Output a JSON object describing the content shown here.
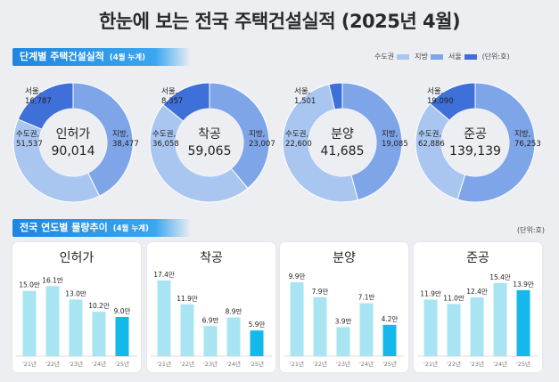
{
  "title": "한눈에 보는 전국 주택건설실적  (2025년 4월)",
  "section1": {
    "label": "단계별 주택건설실적",
    "sub": "(4월 누계)"
  },
  "section2": {
    "label": "전국 연도별 물량추이",
    "sub": "(4월 누계)"
  },
  "legend": [
    {
      "label": "수도권",
      "color": "#a9c6f0"
    },
    {
      "label": "지방",
      "color": "#7ea5e8"
    },
    {
      "label": "서울",
      "color": "#3f6fd8"
    }
  ],
  "unit1": "(단위:호)",
  "unit2": "(단위:호)",
  "colors": {
    "capital": "#a9c6f0",
    "local": "#7ea5e8",
    "seoul": "#3f6fd8",
    "bar": "#a8e4f2",
    "bar_last": "#14b8ea"
  },
  "donuts": [
    {
      "name": "인허가",
      "total": "90,014",
      "seoul_label": "서울,",
      "seoul_value": "16,787",
      "capital_label": "수도권,",
      "capital_value": "51,537",
      "local_label": "지방,",
      "local_value": "38,477",
      "capital": 51537,
      "local": 38477,
      "seoul": 16787
    },
    {
      "name": "착공",
      "total": "59,065",
      "seoul_label": "서울,",
      "seoul_value": "8,357",
      "capital_label": "수도권,",
      "capital_value": "36,058",
      "local_label": "지방,",
      "local_value": "23,007",
      "capital": 36058,
      "local": 23007,
      "seoul": 8357
    },
    {
      "name": "분양",
      "total": "41,685",
      "seoul_label": "서울,",
      "seoul_value": "1,501",
      "capital_label": "수도권,",
      "capital_value": "22,600",
      "local_label": "지방,",
      "local_value": "19,085",
      "capital": 22600,
      "local": 19085,
      "seoul": 1501
    },
    {
      "name": "준공",
      "total": "139,139",
      "seoul_label": "서울,",
      "seoul_value": "19,090",
      "capital_label": "수도권,",
      "capital_value": "62,886",
      "local_label": "지방,",
      "local_value": "76,253",
      "capital": 62886,
      "local": 76253,
      "seoul": 19090
    }
  ],
  "chart_data": [
    {
      "type": "bar",
      "title": "인허가",
      "categories": [
        "'21년",
        "'22년",
        "'23년",
        "'24년",
        "'25년"
      ],
      "values": [
        15.0,
        16.1,
        13.0,
        10.2,
        9.0
      ],
      "labels": [
        "15.0만",
        "16.1만",
        "13.0만",
        "10.2만",
        "9.0만"
      ],
      "ylim": [
        0,
        18
      ]
    },
    {
      "type": "bar",
      "title": "착공",
      "categories": [
        "'21년",
        "'22년",
        "'23년",
        "'24년",
        "'25년"
      ],
      "values": [
        17.4,
        11.9,
        6.9,
        8.9,
        5.9
      ],
      "labels": [
        "17.4만",
        "11.9만",
        "6.9만",
        "8.9만",
        "5.9만"
      ],
      "ylim": [
        0,
        18
      ]
    },
    {
      "type": "bar",
      "title": "분양",
      "categories": [
        "'21년",
        "'22년",
        "'23년",
        "'24년",
        "'25년"
      ],
      "values": [
        9.9,
        7.9,
        3.9,
        7.1,
        4.2
      ],
      "labels": [
        "9.9만",
        "7.9만",
        "3.9만",
        "7.1만",
        "4.2만"
      ],
      "ylim": [
        0,
        10.5
      ]
    },
    {
      "type": "bar",
      "title": "준공",
      "categories": [
        "'21년",
        "'22년",
        "'23년",
        "'24년",
        "'25년"
      ],
      "values": [
        11.9,
        11.0,
        12.4,
        15.4,
        13.9
      ],
      "labels": [
        "11.9만",
        "11.0만",
        "12.4만",
        "15.4만",
        "13.9만"
      ],
      "ylim": [
        0,
        16.5
      ]
    }
  ]
}
